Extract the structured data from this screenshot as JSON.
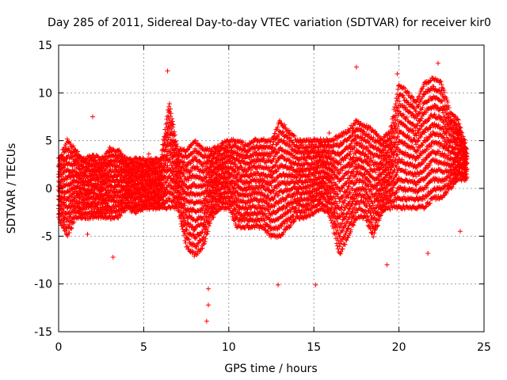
{
  "chart_data": {
    "type": "scatter",
    "title": "Day 285 of 2011, Sidereal Day-to-day VTEC variation (SDTVAR) for receiver kir0",
    "xlabel": "GPS time / hours",
    "ylabel": "SDTVAR / TECUs",
    "xlim": [
      0,
      25
    ],
    "ylim": [
      -15,
      15
    ],
    "x_ticks": [
      0,
      5,
      10,
      15,
      20,
      25
    ],
    "x_tick_labels": [
      "0",
      "5",
      "10",
      "15",
      "20",
      "25"
    ],
    "y_ticks": [
      -15,
      -10,
      -5,
      0,
      5,
      10,
      15
    ],
    "y_tick_labels": [
      "-15",
      "-10",
      "-5",
      "0",
      "5",
      "10",
      "15"
    ],
    "grid": true,
    "marker": "+",
    "color": "#ff0000",
    "envelope": {
      "description": "dense band of points; upper/lower bounds of bulk data vs GPS time",
      "x": [
        0,
        0.5,
        1,
        1.5,
        2,
        2.5,
        3,
        3.5,
        4,
        4.5,
        5,
        5.5,
        6,
        6.5,
        7,
        7.5,
        8,
        8.5,
        9,
        9.5,
        10,
        10.5,
        11,
        11.5,
        12,
        12.5,
        13,
        13.5,
        14,
        14.5,
        15,
        15.5,
        16,
        16.5,
        17,
        17.5,
        18,
        18.5,
        19,
        19.5,
        20,
        20.5,
        21,
        21.5,
        22,
        22.5,
        23,
        23.5,
        24
      ],
      "upper": [
        3,
        5,
        4,
        3,
        3.5,
        3,
        4,
        4,
        3,
        3,
        3,
        3,
        3,
        9,
        4,
        4,
        5,
        4,
        4,
        4.5,
        5,
        5,
        4.5,
        5,
        5,
        5,
        7,
        6,
        5,
        5,
        5,
        5,
        5,
        5.5,
        6,
        7,
        6.5,
        6,
        5,
        6,
        11,
        10,
        9,
        11,
        11.5,
        11,
        8,
        7,
        4
      ],
      "lower": [
        -3,
        -5,
        -3,
        -3,
        -3,
        -3,
        -3,
        -3,
        -2,
        -2.5,
        -2,
        -2,
        -2,
        -2,
        -2,
        -6,
        -7,
        -6,
        -3,
        -2,
        -2,
        -4,
        -4,
        -4,
        -4,
        -5,
        -5,
        -4,
        -3,
        -3,
        -2.5,
        -2,
        -3,
        -7,
        -5,
        -3,
        -3,
        -5,
        -2.5,
        -2,
        -2,
        -2,
        -2,
        -2,
        -1,
        -1,
        0,
        1,
        1
      ]
    },
    "outliers": [
      {
        "x": 2.0,
        "y": 7.5
      },
      {
        "x": 3.0,
        "y": 4.3
      },
      {
        "x": 5.3,
        "y": 3.6
      },
      {
        "x": 6.4,
        "y": 12.3
      },
      {
        "x": 8.7,
        "y": -13.9
      },
      {
        "x": 8.8,
        "y": -12.2
      },
      {
        "x": 8.8,
        "y": -10.5
      },
      {
        "x": 12.9,
        "y": -10.1
      },
      {
        "x": 15.1,
        "y": -10.1
      },
      {
        "x": 15.9,
        "y": 5.8
      },
      {
        "x": 17.5,
        "y": 12.7
      },
      {
        "x": 19.9,
        "y": 12.0
      },
      {
        "x": 21.7,
        "y": -6.8
      },
      {
        "x": 22.3,
        "y": 13.1
      },
      {
        "x": 23.6,
        "y": -4.5
      },
      {
        "x": 1.7,
        "y": -4.8
      },
      {
        "x": 3.2,
        "y": -7.2
      },
      {
        "x": 19.3,
        "y": -8.0
      }
    ]
  }
}
